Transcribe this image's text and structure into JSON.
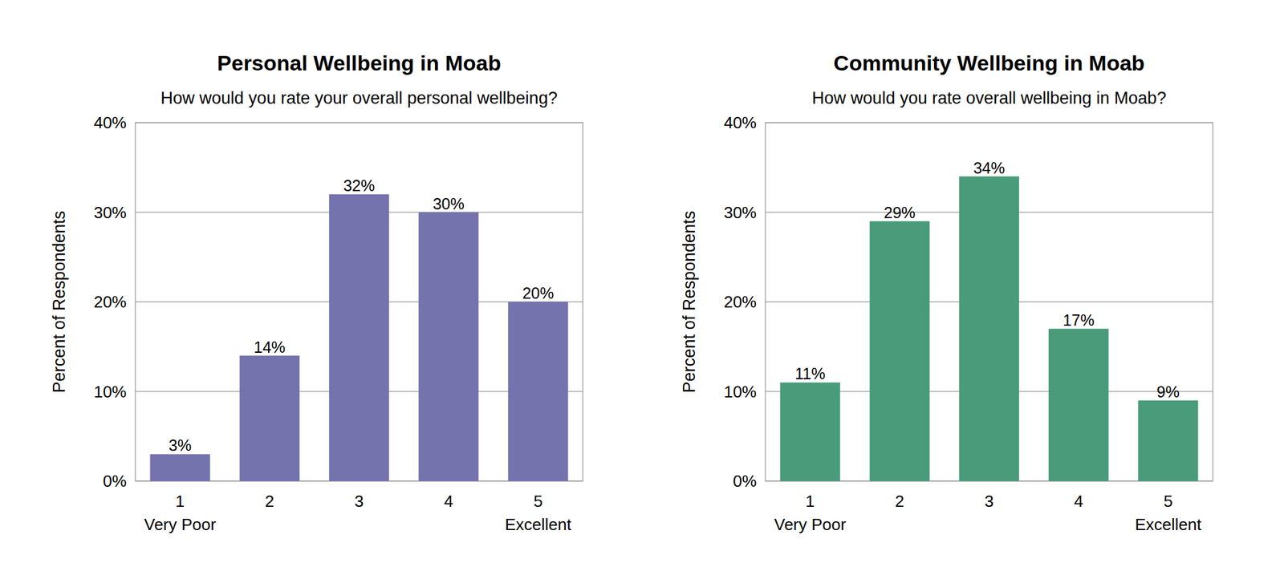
{
  "chart_data": [
    {
      "type": "bar",
      "title": "Personal Wellbeing in Moab",
      "subtitle": "How would you rate your overall personal wellbeing?",
      "y_label": "Percent of Respondents",
      "categories": [
        "1\nVery Poor",
        "2",
        "3",
        "4",
        "5\nExcellent"
      ],
      "values": [
        3,
        14,
        32,
        30,
        20
      ],
      "value_labels": [
        "3%",
        "14%",
        "32%",
        "30%",
        "20%"
      ],
      "color": "#7473ae",
      "ylim": [
        0,
        40
      ],
      "yticks": [
        {
          "value": 0,
          "label": "0%"
        },
        {
          "value": 10,
          "label": "10%"
        },
        {
          "value": 20,
          "label": "20%"
        },
        {
          "value": 30,
          "label": "30%"
        },
        {
          "value": 40,
          "label": "40%"
        }
      ],
      "grid": true,
      "data_labels": true
    },
    {
      "type": "bar",
      "title": "Community Wellbeing in Moab",
      "subtitle": "How would you rate overall wellbeing in Moab?",
      "y_label": "Percent of Respondents",
      "categories": [
        "1\nVery Poor",
        "2",
        "3",
        "4",
        "5\nExcellent"
      ],
      "values": [
        11,
        29,
        34,
        17,
        9
      ],
      "value_labels": [
        "11%",
        "29%",
        "34%",
        "17%",
        "9%"
      ],
      "color": "#4a9b7a",
      "ylim": [
        0,
        40
      ],
      "yticks": [
        {
          "value": 0,
          "label": "0%"
        },
        {
          "value": 10,
          "label": "10%"
        },
        {
          "value": 20,
          "label": "20%"
        },
        {
          "value": 30,
          "label": "30%"
        },
        {
          "value": 40,
          "label": "40%"
        }
      ],
      "grid": true,
      "data_labels": true
    }
  ]
}
